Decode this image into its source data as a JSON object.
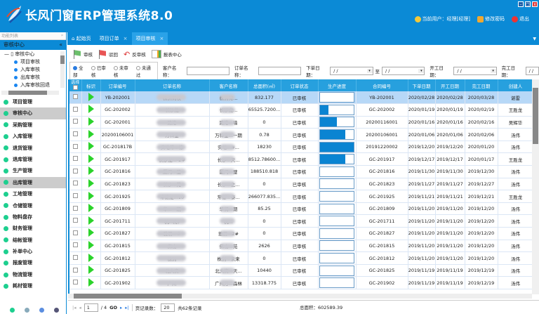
{
  "app": {
    "title": "长风门窗ERP管理系统8.0",
    "current_user": "当前用户：经理[经理]",
    "change_password": "修改密码",
    "logout": "退出",
    "window_controls": [
      "–",
      "□",
      "x"
    ]
  },
  "sidebar": {
    "header": "功能列表",
    "pin": "ᵖ",
    "section": "审核中心",
    "collapse": "«",
    "tree": {
      "root": "审核中心",
      "children": [
        "项目审核",
        "入库审核",
        "出库审核",
        "入库审核回退"
      ]
    },
    "items": [
      {
        "label": "项目管理"
      },
      {
        "label": "审核中心",
        "active": true
      },
      {
        "label": "采购管理"
      },
      {
        "label": "入库管理"
      },
      {
        "label": "退货管理"
      },
      {
        "label": "退库管理"
      },
      {
        "label": "生产管理"
      },
      {
        "label": "出库管理",
        "active": true
      },
      {
        "label": "工地管理"
      },
      {
        "label": "仓储管理"
      },
      {
        "label": "物料盘存"
      },
      {
        "label": "财务管理"
      },
      {
        "label": "结帐管理"
      },
      {
        "label": "补单中心"
      },
      {
        "label": "报废管理"
      },
      {
        "label": "物流管理"
      },
      {
        "label": "耗材管理"
      }
    ]
  },
  "tabs": [
    {
      "label": "起始页",
      "closable": false
    },
    {
      "label": "项目订单",
      "closable": true
    },
    {
      "label": "项目审核",
      "closable": true,
      "active": true
    }
  ],
  "toolbar": {
    "approve": "审核",
    "reject": "驳回",
    "unapprove": "反审核",
    "report": "报表中心"
  },
  "filters": {
    "radios": [
      "全部",
      "已审核",
      "未审核",
      "未通过"
    ],
    "selected": "全部",
    "customer_label": "客户名称：",
    "customer_value": "",
    "order_label": "订单名称：",
    "order_value": "",
    "order_date_label": "下单日期：",
    "to_label": "至",
    "start_date_label": "开工日期：",
    "finish_date_label": "完工日期：",
    "date_placeholder": "/  /"
  },
  "table": {
    "columns": [
      "选择",
      "标识",
      "订单编号",
      "订单名称",
      "客户名称",
      "总面积(㎡)",
      "订单状态",
      "生产进度",
      "合同编号",
      "下单日期",
      "开工日期",
      "完工日期",
      "创建人"
    ],
    "rows": [
      {
        "no": "YB-202001",
        "name": "株洲荷校",
        "cust": "株洲荷...",
        "area": "832.177",
        "status": "已审核",
        "progress": 0,
        "contract": "YB-202001",
        "d1": "2020/02/28",
        "d2": "2020/02/28",
        "d3": "2020/03/28",
        "by": "谌雷"
      },
      {
        "no": "GC-202002",
        "name": "长沙龙",
        "cust": "长沙龙...",
        "area": "65525.7200...",
        "status": "已审核",
        "progress": 0.25,
        "contract": "GC-202002",
        "d1": "2020/01/19",
        "d2": "2020/01/19",
        "d3": "2020/02/19",
        "by": "王胜龙"
      },
      {
        "no": "GC-202001",
        "name": "路港",
        "cust": "路港...墙",
        "area": "0",
        "status": "已审核",
        "progress": 0.5,
        "contract": "20200116001",
        "d1": "2020/01/16",
        "d2": "2020/01/16",
        "d3": "2020/02/16",
        "by": "吴辉华"
      },
      {
        "no": "20200106001",
        "name": "万科金",
        "cust": "万科金...一期",
        "area": "0.78",
        "status": "已审核",
        "progress": 0.75,
        "contract": "20200106001",
        "d1": "2020/01/06",
        "d2": "2020/01/06",
        "d3": "2020/02/06",
        "by": "汤伟"
      },
      {
        "no": "GC-201817B",
        "name": "实地常...栋",
        "cust": "实地...#...",
        "area": "18230",
        "status": "已审核",
        "progress": 1,
        "contract": "20191220002",
        "d1": "2019/12/20",
        "d2": "2019/12/20",
        "d3": "2020/01/20",
        "by": "汤伟"
      },
      {
        "no": "GC-201917",
        "name": "长沙龙...-2#",
        "cust": "长沙...天...",
        "area": "8512.78600...",
        "status": "已审核",
        "progress": 0.75,
        "contract": "GC-201917",
        "d1": "2019/12/17",
        "d2": "2019/12/17",
        "d3": "2020/01/17",
        "by": "王胜龙"
      },
      {
        "no": "GC-201816",
        "name": "厦门...璧",
        "cust": "厦门...璧",
        "area": "188510.818",
        "status": "已审核",
        "progress": 0,
        "contract": "GC-201816",
        "d1": "2019/11/30",
        "d2": "2019/11/30",
        "d3": "2019/12/30",
        "by": "汤伟"
      },
      {
        "no": "GC-201823",
        "name": "长沙...苑",
        "cust": "长沙...之...",
        "area": "0",
        "status": "已审核",
        "progress": 0,
        "contract": "GC-201823",
        "d1": "2019/11/27",
        "d2": "2019/11/27",
        "d3": "2019/12/27",
        "by": "汤伟"
      },
      {
        "no": "GC-201925",
        "name": "常德龙...10",
        "cust": "常德...泰...",
        "area": "266077.835...",
        "status": "已审核",
        "progress": 0,
        "contract": "GC-201925",
        "d1": "2019/11/21",
        "d2": "2019/11/21",
        "d3": "2019/12/21",
        "by": "王胜龙"
      },
      {
        "no": "GC-201809",
        "name": "华...一期",
        "cust": "华润...期",
        "area": "85.25",
        "status": "已审核",
        "progress": 0,
        "contract": "GC-201809",
        "d1": "2019/11/20",
        "d2": "2019/11/20",
        "d3": "2019/12/20",
        "by": "汤伟"
      },
      {
        "no": "GC-201711",
        "name": "杭...府)",
        "cust": "杭...",
        "area": "0",
        "status": "已审核",
        "progress": 0,
        "contract": "GC-201711",
        "d1": "2019/11/20",
        "d2": "2019/11/20",
        "d3": "2019/12/20",
        "by": "汤伟"
      },
      {
        "no": "GC-201827",
        "name": "雅居...#",
        "cust": "雅居...2#",
        "area": "0",
        "status": "已审核",
        "progress": 0,
        "contract": "GC-201827",
        "d1": "2019/11/20",
        "d2": "2019/11/20",
        "d3": "2019/12/20",
        "by": "汤伟"
      },
      {
        "no": "GC-201815",
        "name": "佛山",
        "cust": "佛山...苑",
        "area": "2626",
        "status": "已审核",
        "progress": 0,
        "contract": "GC-201815",
        "d1": "2019/11/20",
        "d2": "2019/11/20",
        "d3": "2019/12/20",
        "by": "汤伟"
      },
      {
        "no": "GC-201812",
        "name": "株洲",
        "cust": "株洲...未来",
        "area": "0",
        "status": "已审核",
        "progress": 0,
        "contract": "GC-201812",
        "d1": "2019/11/20",
        "d2": "2019/11/20",
        "d3": "2019/12/20",
        "by": "汤伟"
      },
      {
        "no": "GC-201825",
        "name": "北大资",
        "cust": "北大资...天...",
        "area": "10440",
        "status": "已审核",
        "progress": 0,
        "contract": "GC-201825",
        "d1": "2019/11/19",
        "d2": "2019/11/19",
        "d3": "2019/12/19",
        "by": "汤伟"
      },
      {
        "no": "GC-201902",
        "name": "广州",
        "cust": "广州万...森林",
        "area": "13318.775",
        "status": "已审核",
        "progress": 0,
        "contract": "GC-201902",
        "d1": "2019/11/19",
        "d2": "2019/11/19",
        "d3": "2019/12/19",
        "by": "汤伟"
      }
    ]
  },
  "pager": {
    "page": "1",
    "total_pages": "/ 4",
    "go": "GO",
    "page_size_label": "页记录数：",
    "page_size": "20",
    "total_records": "共62条记录"
  },
  "summary": {
    "total_area": "总面积：602589.39"
  },
  "colors": {
    "brand": "#0b8ad6",
    "header_row": "#27a0de",
    "selected_row": "#b7d8f7",
    "progress": "#0a84d2",
    "play": "#2bd32b"
  }
}
